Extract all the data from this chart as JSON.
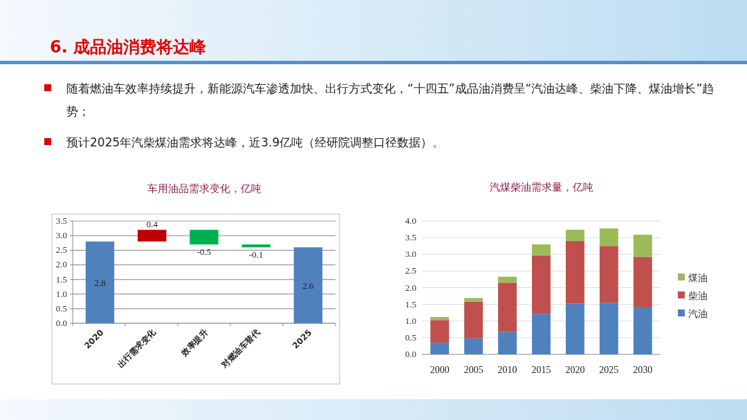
{
  "chart_data": [
    {
      "type": "bar",
      "title": "车用油品需求变化，亿吨",
      "annotations": [
        "6.  成品油消费将达峰",
        "随着燃油车效率持续提升，新能源汽车渗透加快、出行方式变化，“十四五”成品油消费呈“汽油达峰、柴油下降、煤油增长”趋势；",
        "预计2025年汽柴煤油需求将达峰，近3.9亿吨（经研院调整口径数据）。"
      ],
      "categories": [
        "2020",
        "出行需求变化",
        "效率提升",
        "对燃油车替代",
        "2025"
      ],
      "values": [
        2.8,
        0.4,
        -0.5,
        -0.1,
        2.6
      ],
      "base": [
        0,
        2.8,
        3.2,
        2.7,
        0
      ],
      "colors": [
        "#4f81bd",
        "#c00000",
        "#00b050",
        "#00b050",
        "#4f81bd"
      ],
      "data_labels": true,
      "ylim": [
        0,
        3.5
      ],
      "yticks": [
        {
          "value": 0,
          "label": "0.0"
        },
        0.5,
        {
          "value": 1,
          "label": "1.0"
        },
        1.5,
        {
          "value": 2,
          "label": "2.0"
        },
        2.5,
        {
          "value": 3,
          "label": "3.0"
        },
        3.5
      ],
      "grid": "y"
    },
    {
      "type": "bar",
      "title": "汽煤柴油需求量，亿吨",
      "stacked": true,
      "legend": "right",
      "categories": [
        "2000",
        "2005",
        "2010",
        "2015",
        "2020",
        "2025",
        "2030"
      ],
      "series": [
        {
          "name": "汽油",
          "color": "#4f81bd",
          "values": [
            0.35,
            0.48,
            0.68,
            1.22,
            1.52,
            1.55,
            1.41
          ]
        },
        {
          "name": "柴油",
          "color": "#c0504d",
          "values": [
            0.68,
            1.1,
            1.47,
            1.75,
            1.88,
            1.7,
            1.51
          ]
        },
        {
          "name": "煤油",
          "color": "#9bbb59",
          "values": [
            0.09,
            0.11,
            0.18,
            0.33,
            0.34,
            0.53,
            0.67
          ]
        }
      ],
      "ylim": [
        0,
        4
      ],
      "yticks": [
        {
          "value": 0,
          "label": "0.0"
        },
        0.5,
        {
          "value": 1,
          "label": "1.0"
        },
        1.5,
        {
          "value": 2,
          "label": "2.0"
        },
        2.5,
        {
          "value": 3,
          "label": "3.0"
        },
        3.5,
        {
          "value": 4,
          "label": "4.0"
        }
      ],
      "grid": "y"
    }
  ]
}
